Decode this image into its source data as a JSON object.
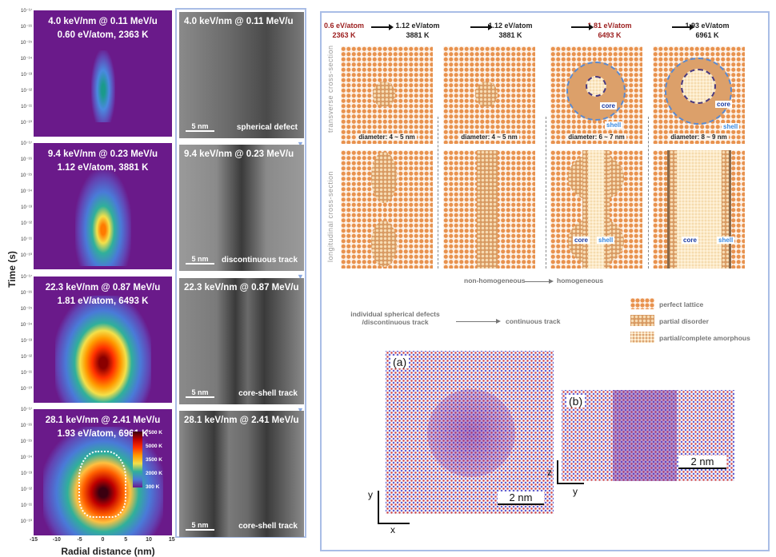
{
  "heatmaps": {
    "y_axis_label": "Time (s)",
    "x_axis_label": "Radial distance (nm)",
    "y_ticks": [
      "10⁻¹⁷",
      "10⁻¹⁶",
      "10⁻¹⁵",
      "10⁻¹⁴",
      "10⁻¹³",
      "10⁻¹²",
      "10⁻¹¹",
      "10⁻¹⁰"
    ],
    "x_ticks": [
      "-15",
      "-10",
      "-5",
      "0",
      "5",
      "10",
      "15"
    ],
    "colorbar": [
      "7500 K",
      "5000 K",
      "3500 K",
      "2000 K",
      "300 K"
    ],
    "panels": [
      {
        "line1": "4.0 keV/nm @ 0.11 MeV/u",
        "line2": "0.60 eV/atom, 2363 K"
      },
      {
        "line1": "9.4 keV/nm @ 0.23 MeV/u",
        "line2": "1.12 eV/atom, 3881 K"
      },
      {
        "line1": "22.3 keV/nm @ 0.87 MeV/u",
        "line2": "1.81 eV/atom, 6493 K"
      },
      {
        "line1": "28.1 keV/nm @ 2.41 MeV/u",
        "line2": "1.93 eV/atom, 6961 K"
      }
    ]
  },
  "tem": {
    "scale_bar": "5 nm",
    "panels": [
      {
        "title": "4.0 keV/nm @ 0.11 MeV/u",
        "caption": "spherical defect"
      },
      {
        "title": "9.4 keV/nm @ 0.23 MeV/u",
        "caption": "discontinuous track"
      },
      {
        "title": "22.3 keV/nm @ 0.87 MeV/u",
        "caption": "core-shell track"
      },
      {
        "title": "28.1 keV/nm @ 2.41 MeV/u",
        "caption": "core-shell track"
      }
    ]
  },
  "schematic": {
    "headers": [
      {
        "l1": "0.6 eV/atom",
        "l2": "2363 K",
        "color": "#9b1c1c"
      },
      {
        "l1": "1.12 eV/atom",
        "l2": "3881 K",
        "color": "#222222"
      },
      {
        "l1": "1.12 eV/atom",
        "l2": "3881 K",
        "color": "#222222"
      },
      {
        "l1": "1.81 eV/atom",
        "l2": "6493 K",
        "color": "#9b1c1c"
      },
      {
        "l1": "1.93 eV/atom",
        "l2": "6961 K",
        "color": "#222222"
      }
    ],
    "row_labels": [
      "transverse cross-section",
      "longitudinal cross-section"
    ],
    "diameters": [
      "diameter: 4 ~ 5 nm",
      "diameter: 4 ~ 5 nm",
      "diameter: 6 ~ 7 nm",
      "diameter: 8 ~ 9 nm"
    ],
    "core": "core",
    "shell": "shell",
    "homog_from": "non-homogeneous",
    "homog_to": "homogeneous",
    "track_from": [
      "individual spherical defects",
      "/discontinuous track"
    ],
    "track_to": "continuous track",
    "legend": [
      "perfect lattice",
      "partial disorder",
      "partial/complete amorphous"
    ]
  },
  "md": {
    "a_label": "(a)",
    "b_label": "(b)",
    "scale": "2 nm",
    "axes_a": [
      "y",
      "x"
    ],
    "axes_b": [
      "z",
      "y"
    ]
  }
}
